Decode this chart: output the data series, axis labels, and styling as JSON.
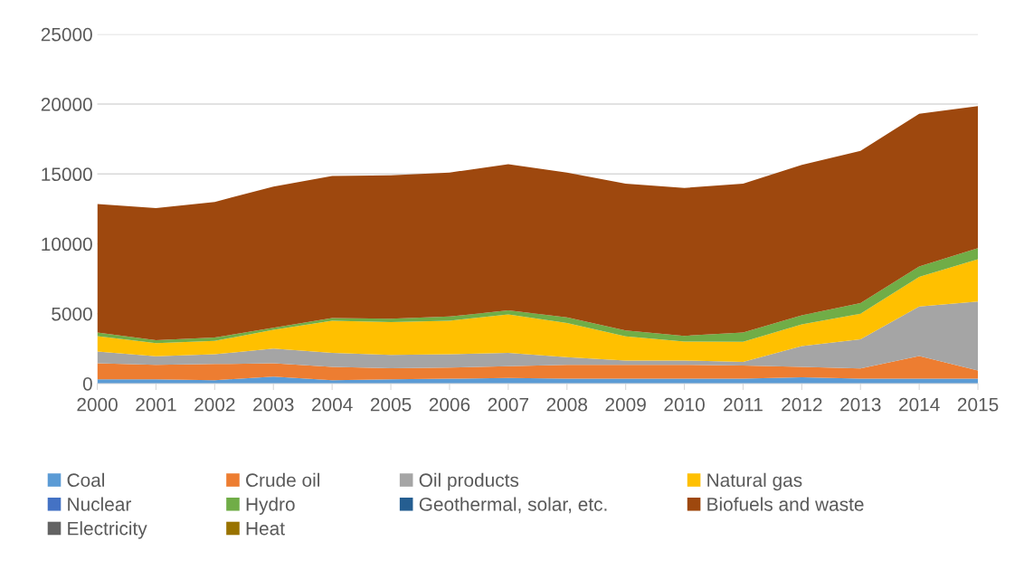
{
  "chart_data": {
    "type": "area",
    "stacked": true,
    "categories": [
      "2000",
      "2001",
      "2002",
      "2003",
      "2004",
      "2005",
      "2006",
      "2007",
      "2008",
      "2009",
      "2010",
      "2011",
      "2012",
      "2013",
      "2014",
      "2015"
    ],
    "series": [
      {
        "name": "Coal",
        "color": "#5b9bd5",
        "values": [
          300,
          300,
          250,
          500,
          250,
          300,
          350,
          400,
          350,
          350,
          350,
          350,
          450,
          350,
          350,
          350
        ]
      },
      {
        "name": "Crude oil",
        "color": "#ed7d31",
        "values": [
          1150,
          1050,
          1150,
          950,
          950,
          800,
          800,
          850,
          990,
          990,
          990,
          950,
          750,
          740,
          1620,
          580
        ]
      },
      {
        "name": "Oil products",
        "color": "#a5a5a5",
        "values": [
          850,
          600,
          700,
          1050,
          1000,
          950,
          950,
          950,
          560,
          310,
          310,
          260,
          1480,
          2080,
          3540,
          4940
        ]
      },
      {
        "name": "Natural gas",
        "color": "#ffc000",
        "values": [
          1100,
          950,
          950,
          1350,
          2300,
          2350,
          2400,
          2750,
          2430,
          1730,
          1360,
          1440,
          1560,
          1830,
          2130,
          3030
        ]
      },
      {
        "name": "Nuclear",
        "color": "#4472c4",
        "values": [
          null,
          null,
          null,
          null,
          null,
          null,
          null,
          null,
          null,
          null,
          null,
          null,
          null,
          null,
          null,
          null
        ]
      },
      {
        "name": "Hydro",
        "color": "#70ad47",
        "values": [
          250,
          200,
          250,
          150,
          200,
          250,
          300,
          300,
          410,
          430,
          410,
          650,
          640,
          760,
          740,
          800
        ]
      },
      {
        "name": "Geothermal, solar, etc.",
        "color": "#255e91",
        "values": [
          null,
          null,
          null,
          null,
          null,
          null,
          null,
          null,
          null,
          null,
          null,
          null,
          null,
          null,
          null,
          null
        ]
      },
      {
        "name": "Biofuels and waste",
        "color": "#9e480e",
        "values": [
          9200,
          9450,
          9700,
          10100,
          10150,
          10250,
          10300,
          10450,
          10360,
          10490,
          10580,
          10650,
          10770,
          10890,
          10920,
          10150
        ]
      },
      {
        "name": "Electricity",
        "color": "#636363",
        "values": [
          null,
          null,
          null,
          null,
          null,
          null,
          null,
          null,
          null,
          null,
          null,
          null,
          null,
          null,
          null,
          null
        ]
      },
      {
        "name": "Heat",
        "color": "#997300",
        "values": [
          null,
          null,
          null,
          null,
          null,
          null,
          null,
          null,
          null,
          null,
          null,
          null,
          null,
          null,
          null,
          null
        ]
      }
    ],
    "ylim": [
      0,
      25000
    ],
    "yticks": [
      0,
      5000,
      10000,
      15000,
      20000,
      25000
    ],
    "grid": "y",
    "legend": "bottom"
  }
}
